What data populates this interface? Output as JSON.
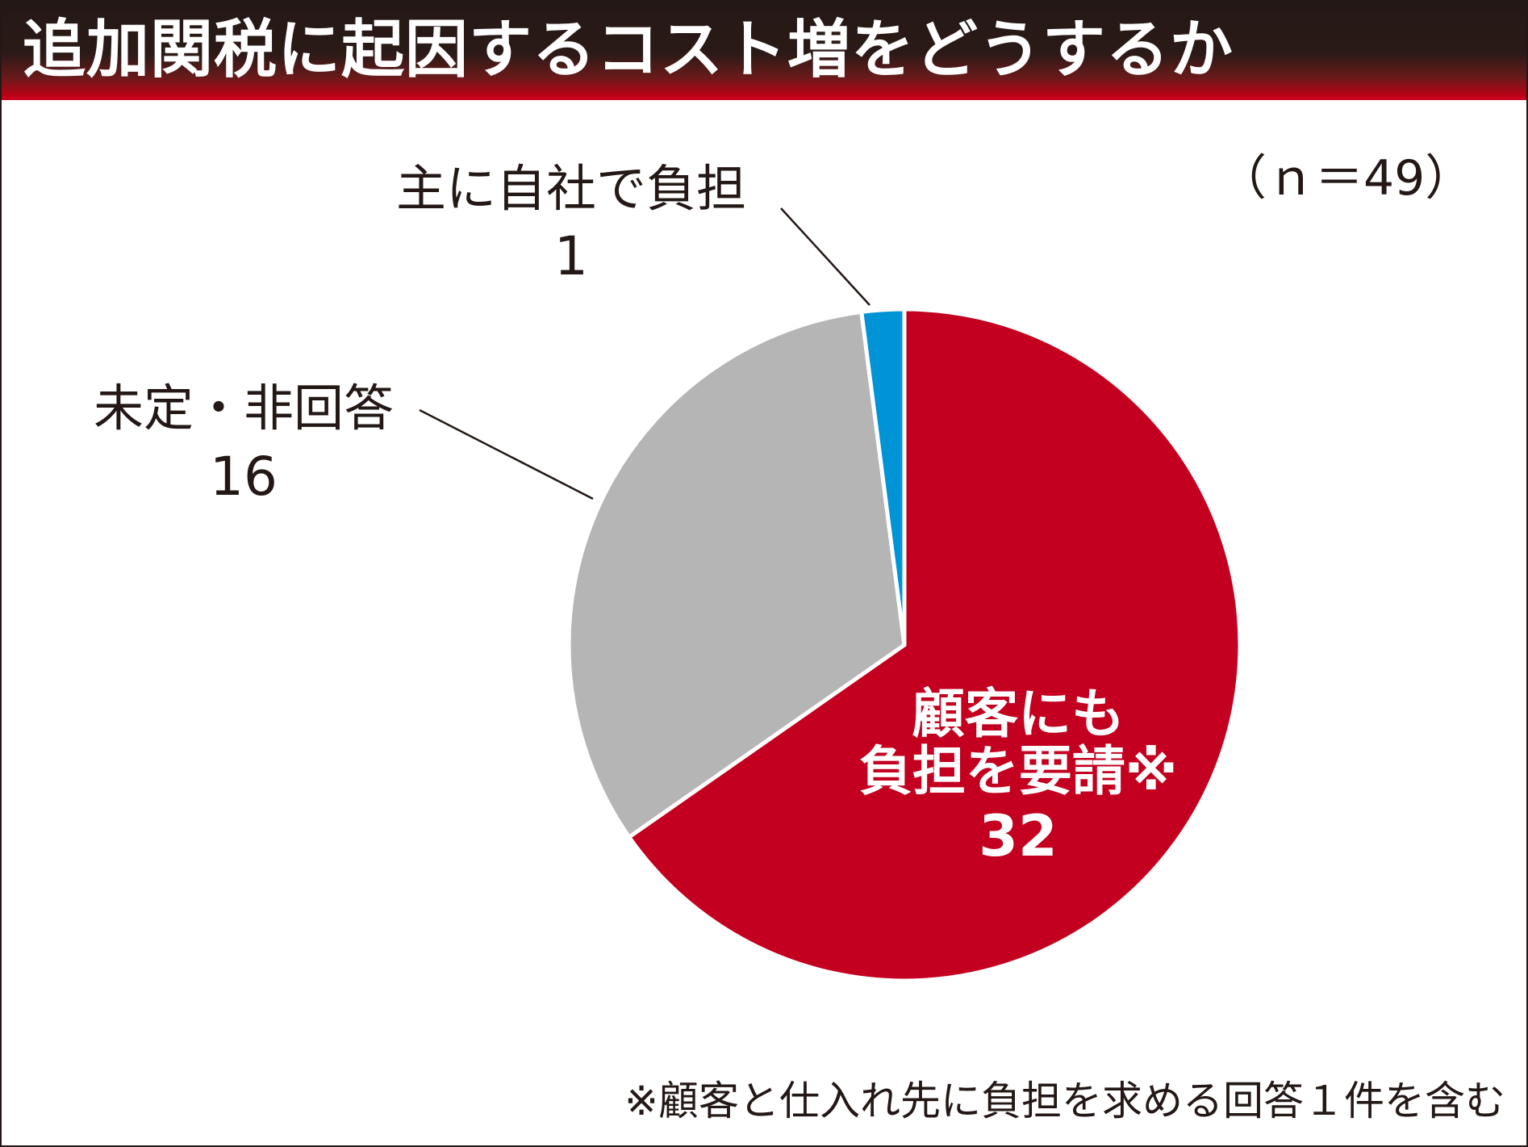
{
  "title": "追加関税に起因するコスト増をどうするか",
  "sample_note": "（ｎ＝49）",
  "footnote": "※顧客と仕入れ先に負担を求める回答１件を含む",
  "colors": {
    "title_bg": "#231815",
    "accent_red": "#c3001f",
    "gray": "#b5b5b6",
    "blue": "#0093d6",
    "text": "#231815"
  },
  "chart_data": {
    "type": "pie",
    "total": 49,
    "slices": [
      {
        "name_lines": [
          "顧客にも",
          "負担を要請※"
        ],
        "value": 32,
        "value_label": "32",
        "color": "#c3001f"
      },
      {
        "name_lines": [
          "未定・非回答"
        ],
        "value": 16,
        "value_label": "16",
        "color": "#b5b5b6"
      },
      {
        "name_lines": [
          "主に自社で負担"
        ],
        "value": 1,
        "value_label": "1",
        "color": "#0093d6"
      }
    ]
  }
}
